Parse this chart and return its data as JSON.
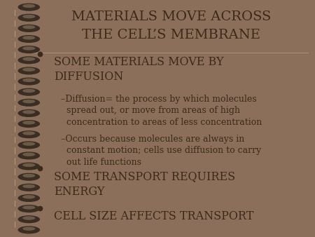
{
  "bg_outer": "#8B6F5A",
  "bg_inner": "#EEEAE0",
  "title_line1": "MATERIALS MOVE ACROSS",
  "title_line2": "THE CELL’S MEMBRANE",
  "title_color": "#3B2A1A",
  "title_fontsize": 14,
  "bullet_color": "#3B2A1A",
  "text_color": "#3B2A1A",
  "spiral_outer_color": "#7A6652",
  "spiral_dot_dark": "#3A2E22",
  "spiral_dot_mid": "#6B5A48",
  "title_divider_color": "#A09080",
  "content": [
    {
      "type": "bullet",
      "text": "SOME MATERIALS MOVE BY\nDIFFUSION",
      "fontsize": 11.5
    },
    {
      "type": "sub",
      "text": "–Diffusion= the process by which molecules\n  spread out, or move from areas of high\n  concentration to areas of less concentration",
      "fontsize": 9.0
    },
    {
      "type": "sub",
      "text": "–Occurs because molecules are always in\n  constant motion; cells use diffusion to carry\n  out life functions",
      "fontsize": 9.0
    },
    {
      "type": "bullet",
      "text": "SOME TRANSPORT REQUIRES\nENERGY",
      "fontsize": 11.5
    },
    {
      "type": "bullet",
      "text": "CELL SIZE AFFECTS TRANSPORT",
      "fontsize": 11.5
    }
  ]
}
